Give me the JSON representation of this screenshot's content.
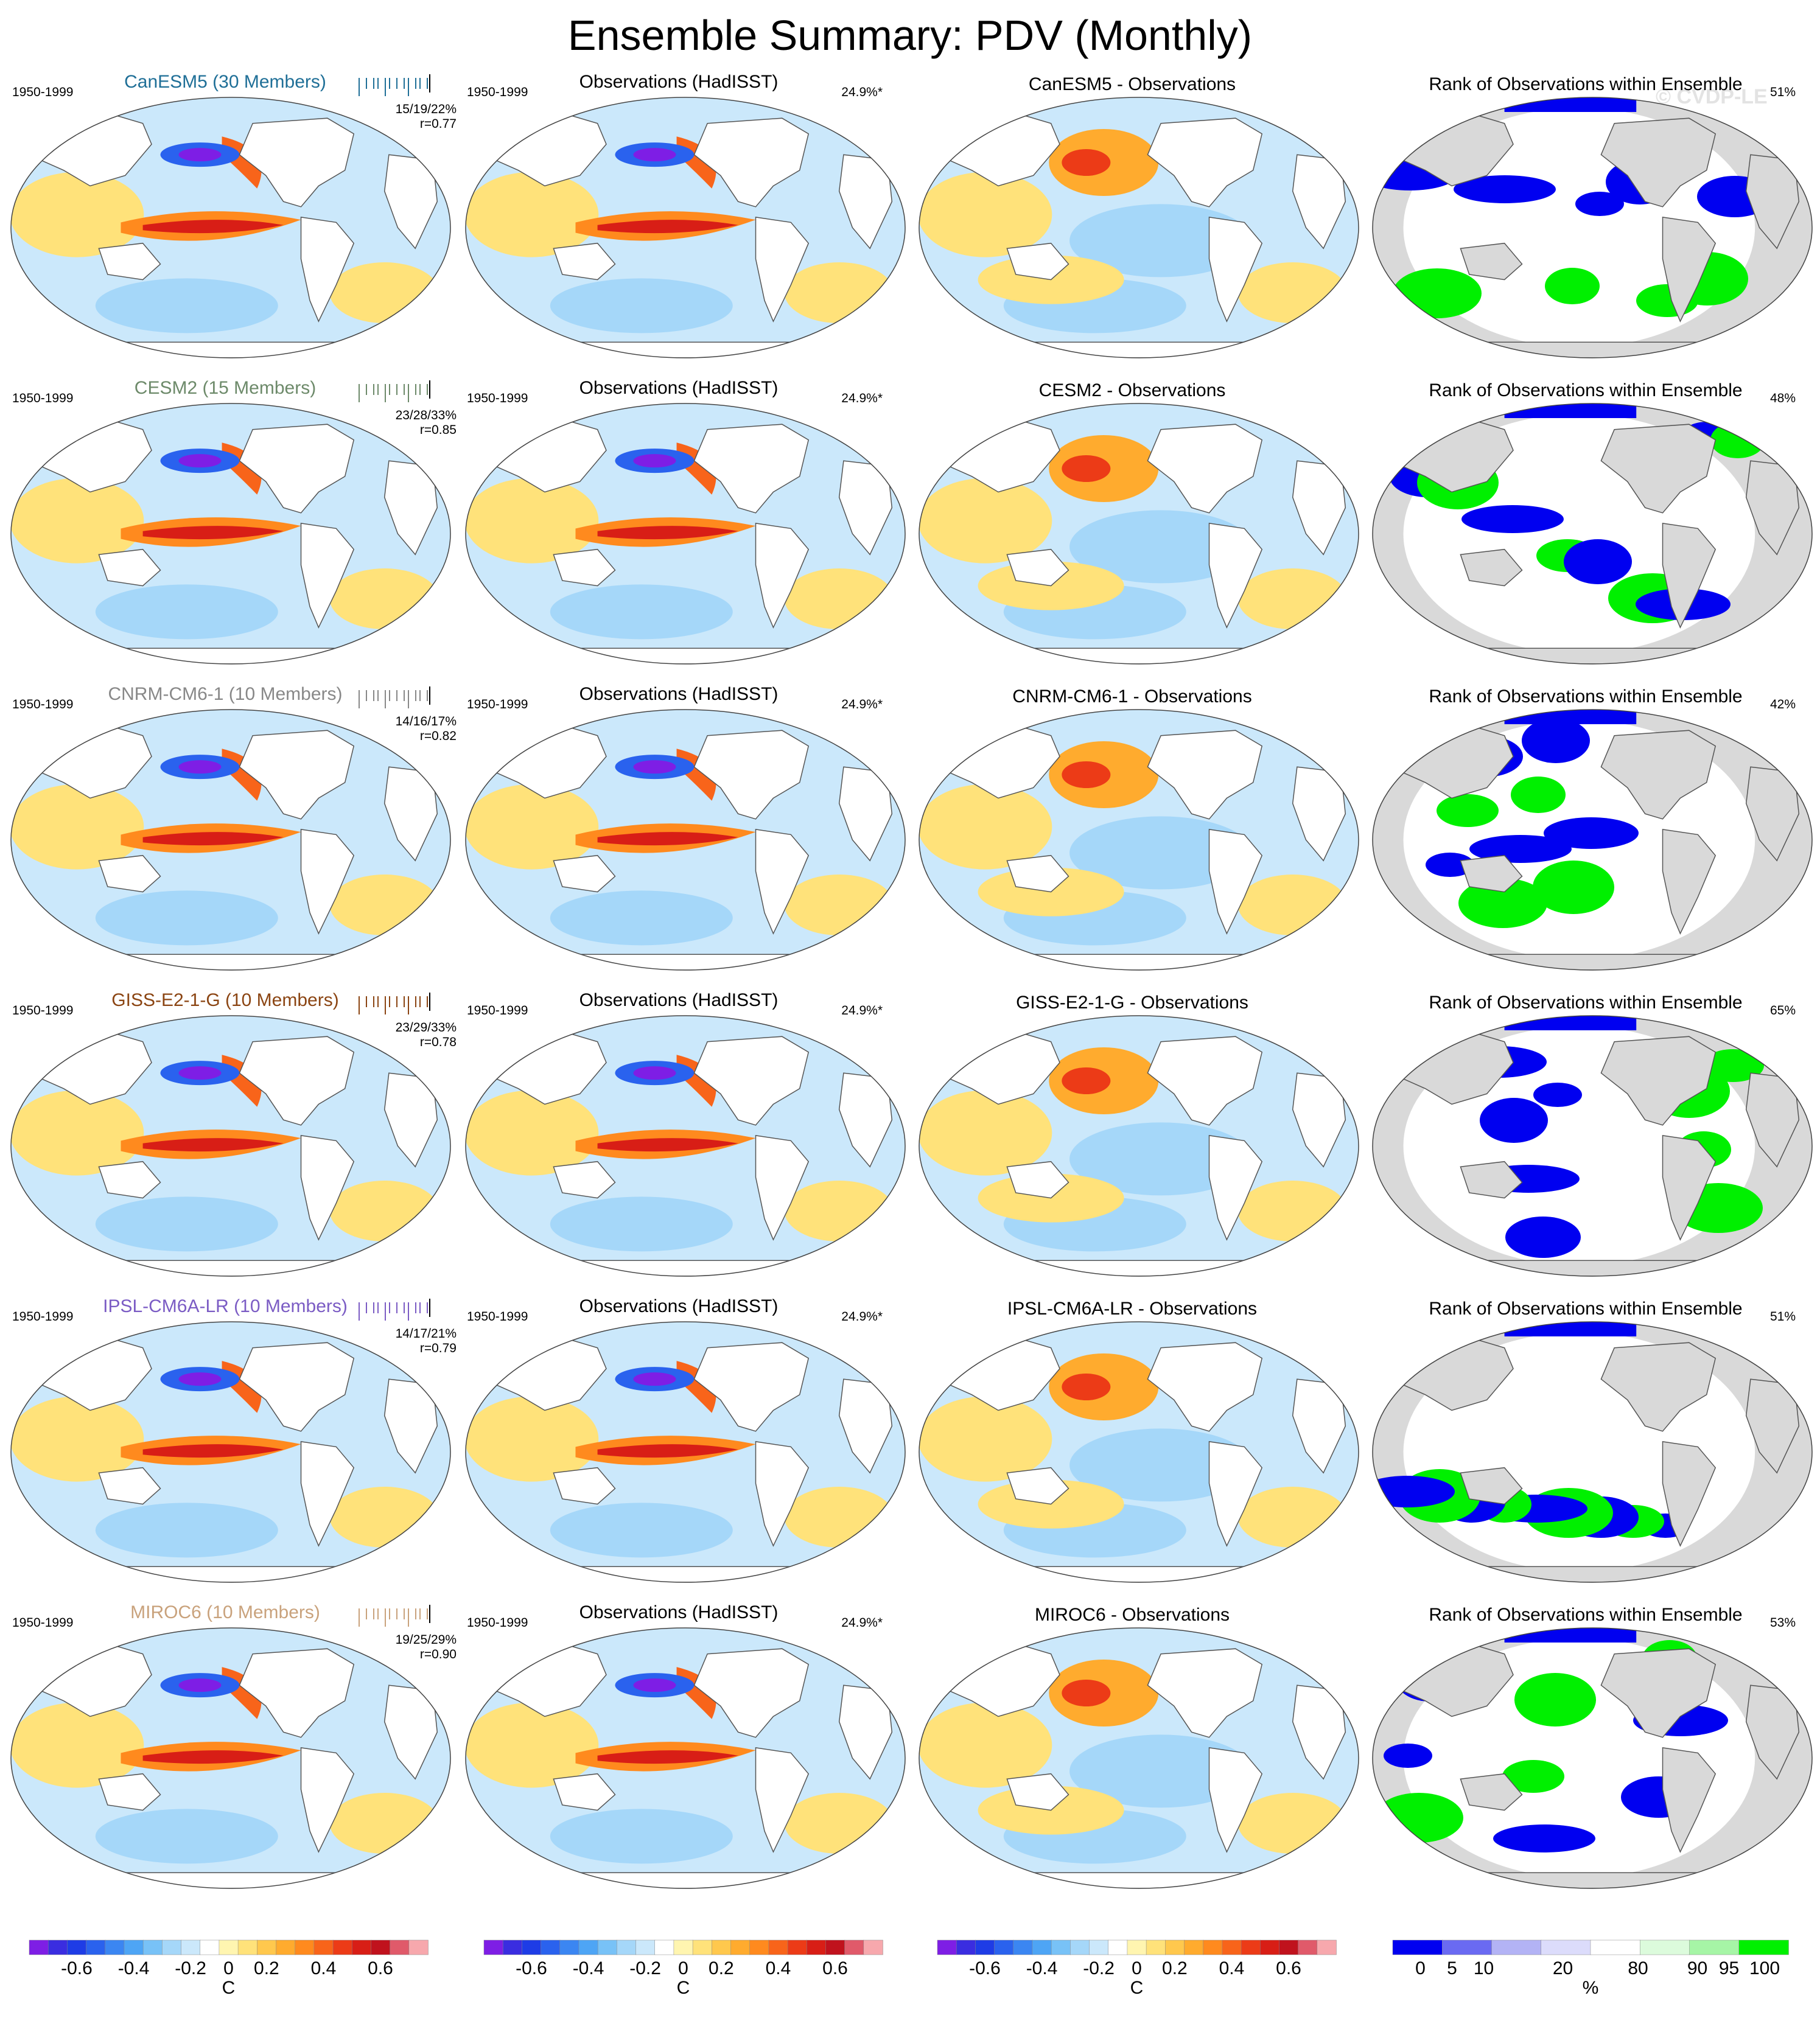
{
  "title": "Ensemble Summary: PDV (Monthly)",
  "watermark": "© CVDP-LE",
  "period": "1950-1999",
  "obs_title": "Observations (HadISST)",
  "obs_variance": "24.9%*",
  "rank_title": "Rank of Observations within Ensemble",
  "rows": [
    {
      "model": "CanESM5",
      "members_label": "CanESM5 (30 Members)",
      "color": "#1f6f97",
      "stats": "15/19/22%",
      "corr": "r=0.77",
      "diff_title": "CanESM5 - Observations",
      "rank_pct": "51%"
    },
    {
      "model": "CESM2",
      "members_label": "CESM2 (15 Members)",
      "color": "#6d8a6a",
      "stats": "23/28/33%",
      "corr": "r=0.85",
      "diff_title": "CESM2 - Observations",
      "rank_pct": "48%"
    },
    {
      "model": "CNRM-CM6-1",
      "members_label": "CNRM-CM6-1 (10 Members)",
      "color": "#888888",
      "stats": "14/16/17%",
      "corr": "r=0.82",
      "diff_title": "CNRM-CM6-1 - Observations",
      "rank_pct": "42%"
    },
    {
      "model": "GISS-E2-1-G",
      "members_label": "GISS-E2-1-G (10 Members)",
      "color": "#8b4513",
      "stats": "23/29/33%",
      "corr": "r=0.78",
      "diff_title": "GISS-E2-1-G - Observations",
      "rank_pct": "65%"
    },
    {
      "model": "IPSL-CM6A-LR",
      "members_label": "IPSL-CM6A-LR (10 Members)",
      "color": "#7b5cc4",
      "stats": "14/17/21%",
      "corr": "r=0.79",
      "diff_title": "IPSL-CM6A-LR - Observations",
      "rank_pct": "51%"
    },
    {
      "model": "MIROC6",
      "members_label": "MIROC6 (10 Members)",
      "color": "#c9a27c",
      "stats": "19/25/29%",
      "corr": "r=0.90",
      "diff_title": "MIROC6 - Observations",
      "rank_pct": "53%"
    }
  ],
  "colorbars": {
    "sst_unit": "C",
    "sst_ticks": [
      "-0.6",
      "-0.4",
      "-0.2",
      "0",
      "0.2",
      "0.4",
      "0.6"
    ],
    "sst_colors": [
      "#7e1ee5",
      "#3a2de0",
      "#1e3ce6",
      "#2a62ee",
      "#3b86f2",
      "#4ea5f5",
      "#78c2f7",
      "#a5d7f9",
      "#cbe8fb",
      "#ffffff",
      "#fff5b0",
      "#ffe27a",
      "#ffc84d",
      "#ffab2e",
      "#ff8a1e",
      "#f8641a",
      "#ec3b17",
      "#d81e16",
      "#c0121d",
      "#e05a6a",
      "#f7a8ad"
    ],
    "rank_unit": "%",
    "rank_ticks": [
      "0",
      "5",
      "10",
      "20",
      "80",
      "90",
      "95",
      "100"
    ],
    "rank_colors": [
      "#0000f0",
      "#6a6af2",
      "#b3b3f5",
      "#dcdcfb",
      "#ffffff",
      "#dcfbdc",
      "#a6f5a6",
      "#00f000"
    ]
  },
  "chart_data": {
    "type": "heatmap",
    "description_layout": "6 rows x 4 columns of global SST regression maps",
    "columns": [
      "Model ensemble mean",
      "Observations (HadISST)",
      "Model - Observations",
      "Rank of Observations within Ensemble"
    ],
    "period": "1950-1999",
    "observed_variance_explained": "24.9%*",
    "sst_range": [
      -0.7,
      0.7
    ],
    "sst_unit": "C",
    "rank_unit": "%",
    "models": [
      {
        "name": "CanESM5",
        "members": 30,
        "variance_explained_min_mean_max": [
          15,
          19,
          22
        ],
        "pattern_correlation": 0.77,
        "rank_percent": 51
      },
      {
        "name": "CESM2",
        "members": 15,
        "variance_explained_min_mean_max": [
          23,
          28,
          33
        ],
        "pattern_correlation": 0.85,
        "rank_percent": 48
      },
      {
        "name": "CNRM-CM6-1",
        "members": 10,
        "variance_explained_min_mean_max": [
          14,
          16,
          17
        ],
        "pattern_correlation": 0.82,
        "rank_percent": 42
      },
      {
        "name": "GISS-E2-1-G",
        "members": 10,
        "variance_explained_min_mean_max": [
          23,
          29,
          33
        ],
        "pattern_correlation": 0.78,
        "rank_percent": 65
      },
      {
        "name": "IPSL-CM6A-LR",
        "members": 10,
        "variance_explained_min_mean_max": [
          14,
          17,
          21
        ],
        "pattern_correlation": 0.79,
        "rank_percent": 51
      },
      {
        "name": "MIROC6",
        "members": 10,
        "variance_explained_min_mean_max": [
          19,
          25,
          29
        ],
        "pattern_correlation": 0.9,
        "rank_percent": 53
      }
    ]
  }
}
